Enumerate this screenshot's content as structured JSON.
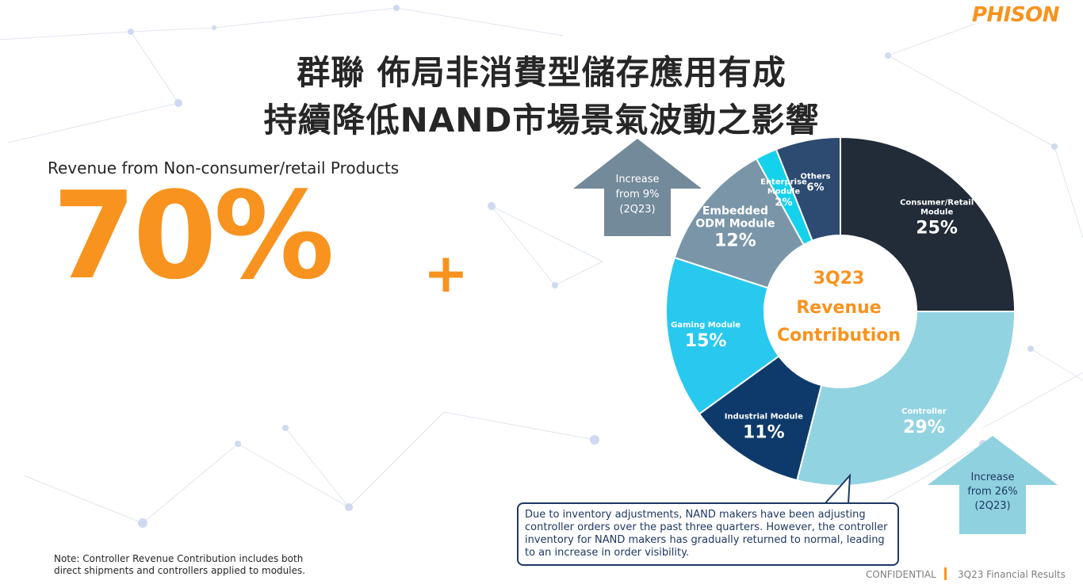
{
  "brand": {
    "logo_text": "PHISON"
  },
  "header": {
    "title_line1": "群聯 佈局非消費型儲存應用有成",
    "title_line2": "持續降低NAND市場景氣波動之影響"
  },
  "kpi": {
    "label": "Revenue from Non-consumer/retail Products",
    "value": "70%",
    "suffix": "+"
  },
  "chart_data": {
    "type": "pie",
    "title": "3Q23 Revenue Contribution",
    "center_lines": [
      "3Q23",
      "Revenue",
      "Contribution"
    ],
    "slices": [
      {
        "name": "Consumer/Retail Module",
        "lines": [
          "Consumer/Retail",
          "Module"
        ],
        "value": 25,
        "label": "25%",
        "color": "#222b38"
      },
      {
        "name": "Controller",
        "lines": [
          "Controller"
        ],
        "value": 29,
        "label": "29%",
        "color": "#92d3e2"
      },
      {
        "name": "Industrial Module",
        "lines": [
          "Industrial Module"
        ],
        "value": 11,
        "label": "11%",
        "color": "#0e3a6b"
      },
      {
        "name": "Gaming Module",
        "lines": [
          "Gaming Module"
        ],
        "value": 15,
        "label": "15%",
        "color": "#29c9ef"
      },
      {
        "name": "Embedded ODM Module",
        "lines": [
          "Embedded",
          "ODM Module"
        ],
        "value": 12,
        "label": "12%",
        "color": "#7a95a8"
      },
      {
        "name": "Enterprise Module",
        "lines": [
          "Enterprise",
          "Module"
        ],
        "value": 2,
        "label": "2%",
        "color": "#14d1ec"
      },
      {
        "name": "Others",
        "lines": [
          "Others"
        ],
        "value": 6,
        "label": "6%",
        "color": "#2d4a70"
      }
    ]
  },
  "annotations": {
    "embedded_increase": [
      "Increase",
      "from 9%",
      "(2Q23)"
    ],
    "controller_increase": [
      "Increase",
      "from 26%",
      "(2Q23)"
    ]
  },
  "callout": {
    "text": "Due to inventory adjustments, NAND makers have been adjusting controller orders over the past three quarters. However, the controller inventory for NAND makers has gradually returned to normal, leading to an increase in order visibility."
  },
  "note": {
    "text": "Note:  Controller Revenue Contribution includes both direct shipments and controllers applied to modules."
  },
  "footer": {
    "confidential": "CONFIDENTIAL",
    "report": "3Q23 Financial Results"
  },
  "colors": {
    "accent": "#f7931e",
    "arrow_grey": "#738a9a",
    "arrow_light": "#8fd1df"
  }
}
